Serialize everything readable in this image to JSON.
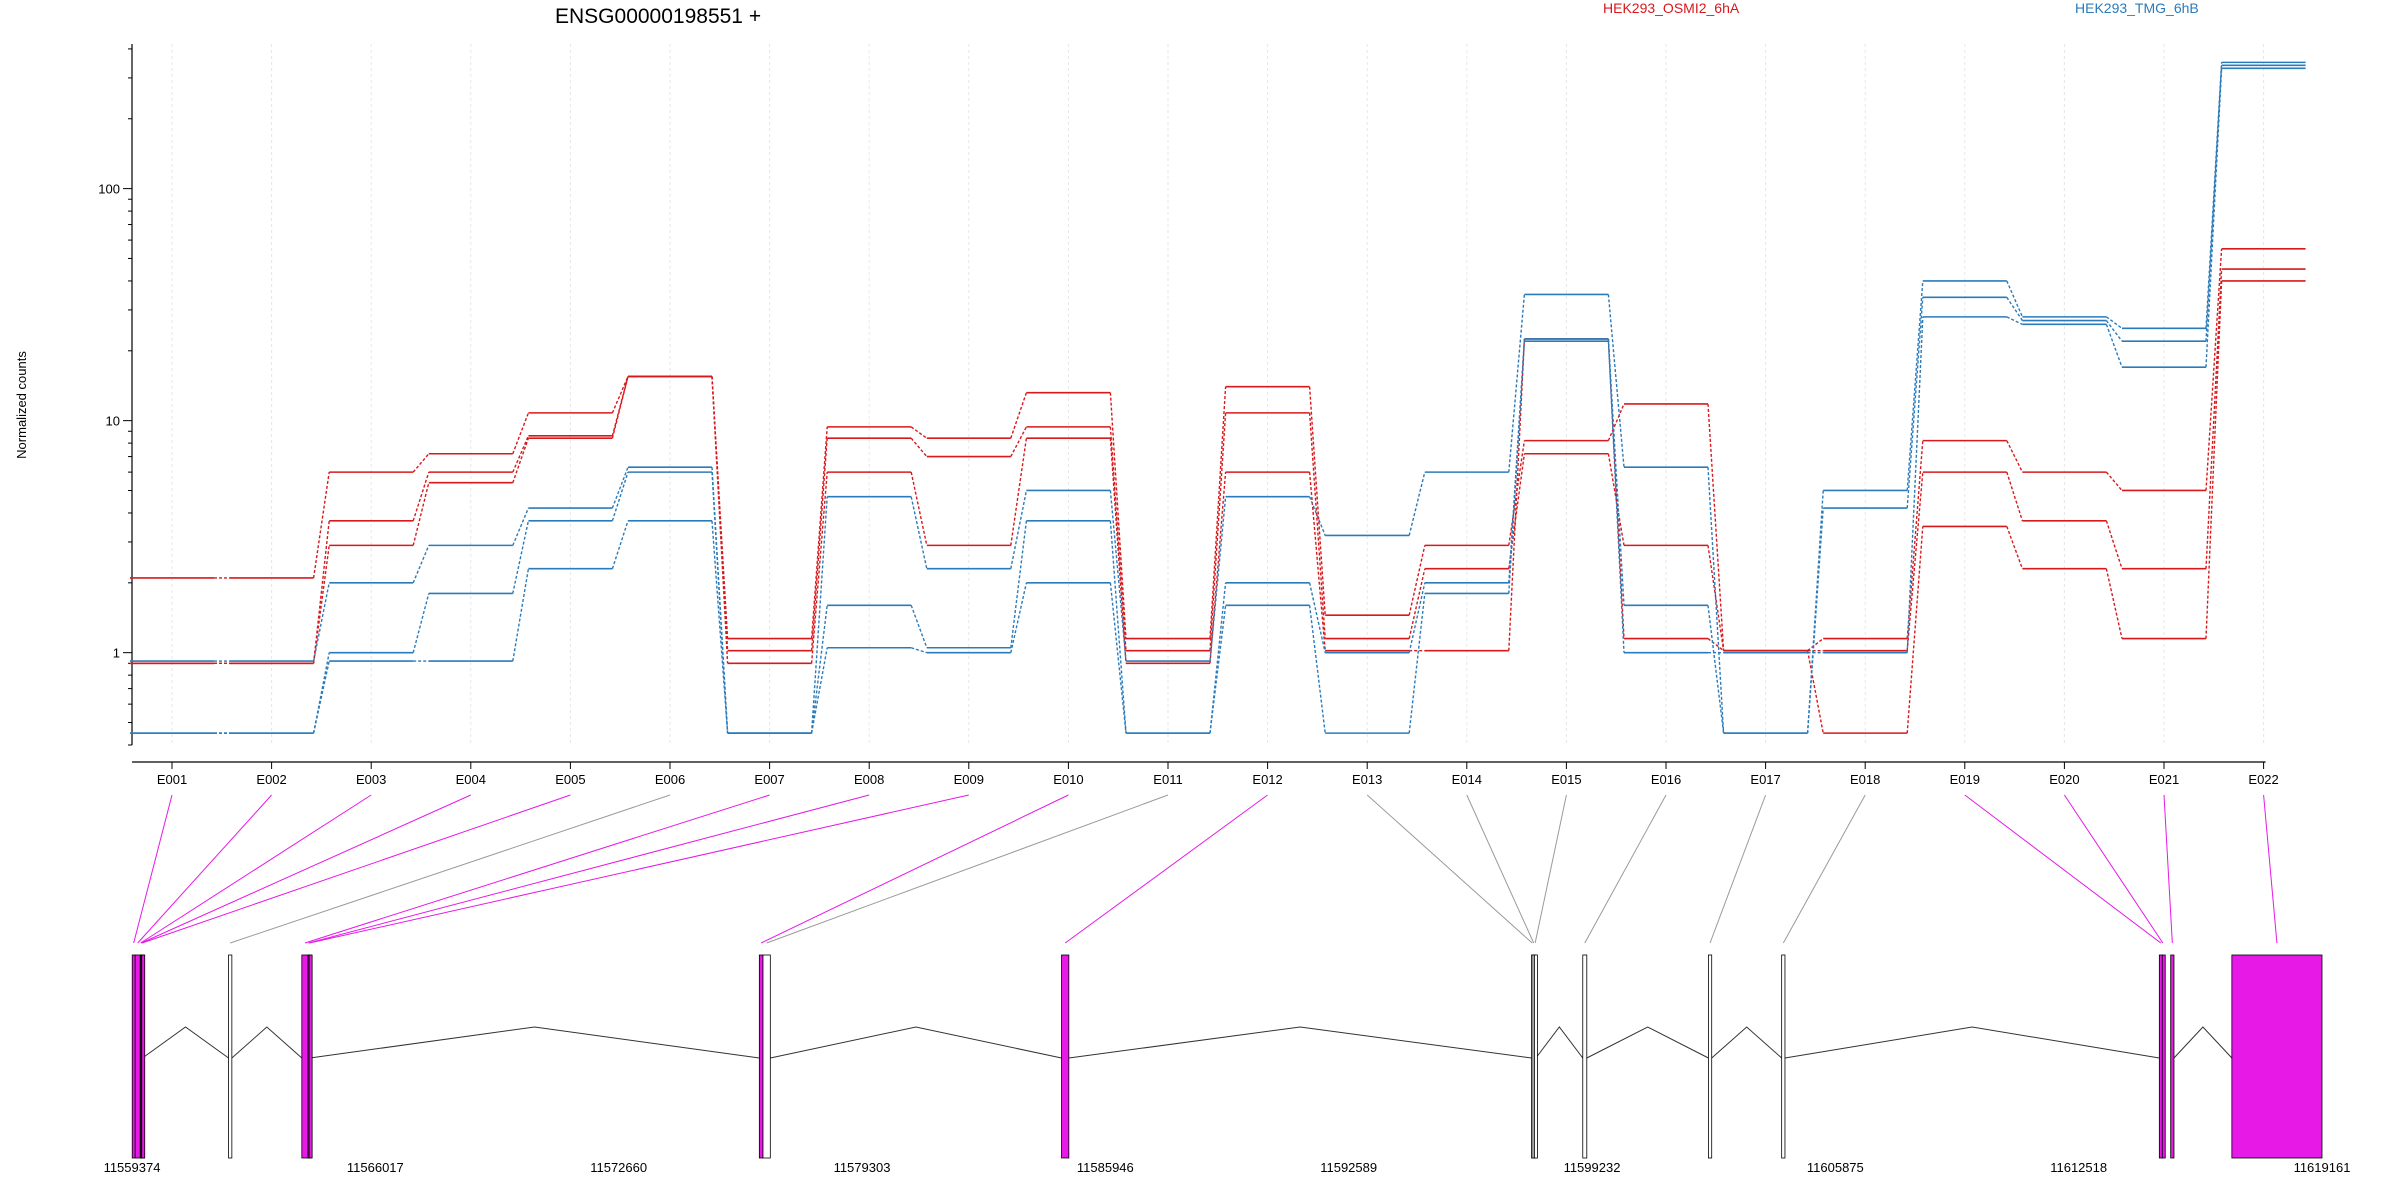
{
  "chart_data": {
    "type": "line",
    "title": "ENSG00000198551 +",
    "ylabel": "Normalized counts",
    "y_scale": "log",
    "ylim": [
      0.4,
      420
    ],
    "y_ticks": [
      1,
      10,
      100
    ],
    "y_tick_labels": [
      "1",
      "10",
      "100"
    ],
    "grid": "vertical dotted lines at each exon",
    "legend_placement": "top",
    "colors": {
      "red": "#d7191c",
      "blue": "#2b7bba",
      "highlight": "#e619e6",
      "gray": "#9a9a9a"
    },
    "categories": [
      "E001",
      "E002",
      "E003",
      "E004",
      "E005",
      "E006",
      "E007",
      "E008",
      "E009",
      "E010",
      "E011",
      "E012",
      "E013",
      "E014",
      "E015",
      "E016",
      "E017",
      "E018",
      "E019",
      "E020",
      "E021",
      "E022"
    ],
    "series": [
      {
        "name": "HEK293_OSMI2_6hA",
        "group": "red",
        "values": [
          2.1,
          2.1,
          6.0,
          7.2,
          10.8,
          15.5,
          1.15,
          9.4,
          8.4,
          13.2,
          1.15,
          14.0,
          1.45,
          2.9,
          8.2,
          11.8,
          1.02,
          1.15,
          8.2,
          6.0,
          5.0,
          55
        ]
      },
      {
        "name": "",
        "group": "red",
        "values": [
          0.9,
          0.9,
          3.7,
          6.0,
          8.6,
          15.5,
          1.02,
          8.4,
          7.0,
          9.4,
          1.02,
          10.8,
          1.15,
          2.3,
          7.2,
          2.9,
          1.02,
          1.02,
          6.0,
          3.7,
          2.3,
          45
        ]
      },
      {
        "name": "",
        "group": "red",
        "values": [
          0.9,
          0.9,
          2.9,
          5.4,
          8.4,
          15.5,
          0.9,
          6.0,
          2.9,
          8.4,
          0.9,
          6.0,
          1.02,
          1.02,
          22.5,
          1.15,
          1.02,
          0.45,
          3.5,
          2.3,
          1.15,
          40
        ]
      },
      {
        "name": "HEK293_TMG_6hB",
        "group": "blue",
        "values": [
          0.92,
          0.92,
          2.0,
          2.9,
          4.2,
          6.3,
          0.45,
          4.7,
          2.3,
          5.0,
          0.92,
          4.7,
          3.2,
          6.0,
          35,
          6.3,
          0.45,
          5.0,
          40,
          28,
          25,
          350
        ]
      },
      {
        "name": "",
        "group": "blue",
        "values": [
          0.45,
          0.45,
          1.0,
          1.8,
          3.7,
          6.0,
          0.45,
          1.6,
          1.05,
          3.7,
          0.45,
          2.0,
          1.0,
          2.0,
          22.5,
          1.6,
          0.45,
          4.2,
          34,
          27,
          22,
          340
        ]
      },
      {
        "name": "",
        "group": "blue",
        "values": [
          0.45,
          0.45,
          0.92,
          0.92,
          2.3,
          3.7,
          0.45,
          1.05,
          1.0,
          2.0,
          0.45,
          1.6,
          0.45,
          1.8,
          22,
          1.0,
          1.0,
          1.0,
          28,
          26,
          17,
          330
        ]
      }
    ],
    "highlighted_exons": [
      "E001",
      "E002",
      "E003",
      "E004",
      "E005",
      "E007",
      "E008",
      "E009",
      "E010",
      "E012",
      "E019",
      "E020",
      "E021",
      "E022"
    ],
    "gene_model": {
      "coordinate_range": [
        11559374,
        11619161
      ],
      "coordinate_ticks": [
        "11559374",
        "11566017",
        "11572660",
        "11579303",
        "11585946",
        "11592589",
        "11599232",
        "11605875",
        "11612518",
        "11619161"
      ],
      "exons": [
        {
          "id": "E001",
          "start": 11559380,
          "end": 11559460
        },
        {
          "id": "E002",
          "start": 11559460,
          "end": 11559600
        },
        {
          "id": "E003",
          "start": 11559600,
          "end": 11559620
        },
        {
          "id": "E004",
          "start": 11559620,
          "end": 11559640
        },
        {
          "id": "E005",
          "start": 11559640,
          "end": 11559660
        },
        {
          "id": "E006",
          "start": 11562010,
          "end": 11562100
        },
        {
          "id": "E007",
          "start": 11564010,
          "end": 11564180
        },
        {
          "id": "E008",
          "start": 11564180,
          "end": 11564210
        },
        {
          "id": "E009",
          "start": 11564210,
          "end": 11564230
        },
        {
          "id": "E010",
          "start": 11576500,
          "end": 11576600
        },
        {
          "id": "E011",
          "start": 11576600,
          "end": 11576800
        },
        {
          "id": "E012",
          "start": 11584750,
          "end": 11584950
        },
        {
          "id": "E013",
          "start": 11597580,
          "end": 11597620
        },
        {
          "id": "E014",
          "start": 11597620,
          "end": 11597660
        },
        {
          "id": "E015",
          "start": 11597660,
          "end": 11597700
        },
        {
          "id": "E016",
          "start": 11598980,
          "end": 11599090
        },
        {
          "id": "E017",
          "start": 11602410,
          "end": 11602500
        },
        {
          "id": "E018",
          "start": 11604410,
          "end": 11604500
        },
        {
          "id": "E019",
          "start": 11614720,
          "end": 11614800
        },
        {
          "id": "E020",
          "start": 11614800,
          "end": 11614830
        },
        {
          "id": "E021",
          "start": 11615030,
          "end": 11615120
        },
        {
          "id": "E022",
          "start": 11616700,
          "end": 11619161
        }
      ]
    }
  }
}
